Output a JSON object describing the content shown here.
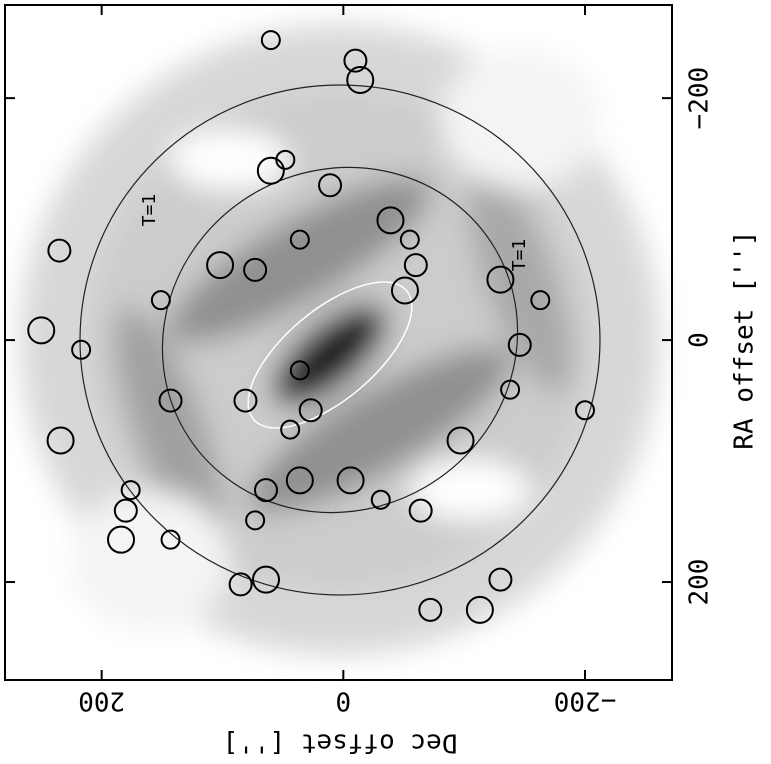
{
  "chart_data": {
    "type": "scatter",
    "xlabel": "Dec offset  ['']",
    "ylabel": "RA offset  ['']",
    "xlim": [
      280,
      -272
    ],
    "ylim": [
      -277,
      281
    ],
    "xticks": [
      200,
      0,
      {
        "value": -200,
        "label": "−200"
      }
    ],
    "yticks": [
      {
        "value": -200,
        "label": "−200"
      },
      0,
      200
    ],
    "annotations": [
      "T=1",
      "T=1"
    ],
    "series": [
      {
        "color": "#000000",
        "x": [
          60,
          -10,
          -14,
          48,
          11,
          -39,
          -55,
          -60,
          -51,
          36,
          73,
          102,
          151,
          235,
          250,
          217,
          143,
          234,
          176,
          180,
          184,
          143,
          85,
          64,
          73,
          64,
          36,
          44,
          81,
          -6,
          -31,
          -64,
          -97,
          -138,
          -146,
          -130,
          -163,
          -130,
          -113,
          -200,
          -72,
          60,
          36,
          27
        ],
        "values": [
          -248,
          -231,
          -215,
          -149,
          -128,
          -99,
          -83,
          -62,
          -41,
          -83,
          -58,
          -62,
          -33,
          -74,
          -8,
          8,
          50,
          83,
          124,
          141,
          165,
          165,
          202,
          198,
          149,
          124,
          116,
          74,
          50,
          116,
          132,
          141,
          83,
          41,
          4,
          -50,
          -33,
          198,
          223,
          58,
          223,
          -140,
          25,
          58
        ]
      }
    ]
  }
}
